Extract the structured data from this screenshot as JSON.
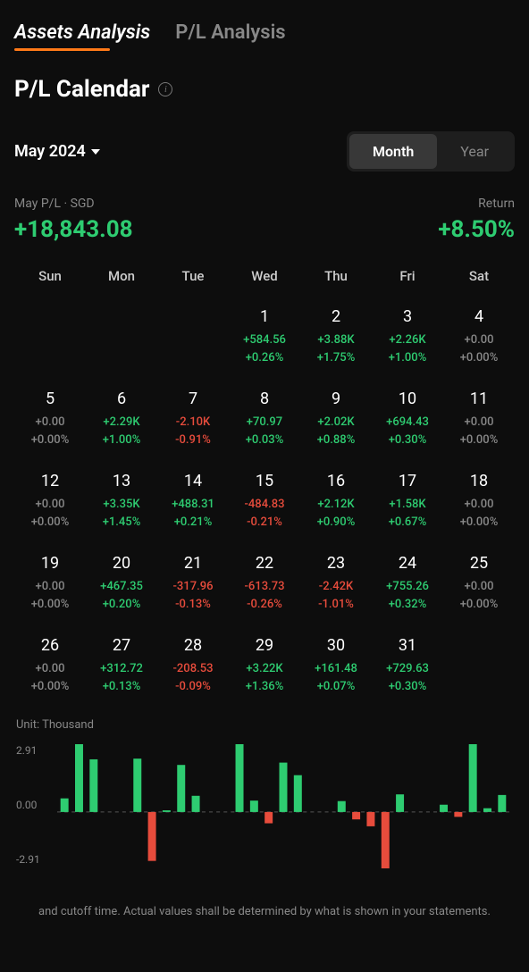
{
  "colors": {
    "positive": "#2ecc71",
    "negative": "#e74c3c",
    "neutral": "#888888",
    "background": "#0d0d0d",
    "grid": "#555555"
  },
  "tabs": [
    {
      "label": "Assets Analysis",
      "active": true
    },
    {
      "label": "P/L Analysis",
      "active": false
    }
  ],
  "page_title": "P/L Calendar",
  "period": {
    "label": "May 2024",
    "toggles": [
      {
        "label": "Month",
        "active": true
      },
      {
        "label": "Year",
        "active": false
      }
    ]
  },
  "summary": {
    "left_label": "May P/L · SGD",
    "left_value": "+18,843.08",
    "left_class": "pos",
    "right_label": "Return",
    "right_value": "+8.50%",
    "right_class": "pos"
  },
  "weekdays": [
    "Sun",
    "Mon",
    "Tue",
    "Wed",
    "Thu",
    "Fri",
    "Sat"
  ],
  "calendar_weeks": [
    [
      null,
      null,
      null,
      {
        "day": "1",
        "val": "+584.56",
        "pct": "+0.26%",
        "cls": "pos",
        "bar": 584.56
      },
      {
        "day": "2",
        "val": "+3.88K",
        "pct": "+1.75%",
        "cls": "pos",
        "bar": 3880
      },
      {
        "day": "3",
        "val": "+2.26K",
        "pct": "+1.00%",
        "cls": "pos",
        "bar": 2260
      },
      {
        "day": "4",
        "val": "+0.00",
        "pct": "+0.00%",
        "cls": "neu",
        "bar": 0
      }
    ],
    [
      {
        "day": "5",
        "val": "+0.00",
        "pct": "+0.00%",
        "cls": "neu",
        "bar": 0
      },
      {
        "day": "6",
        "val": "+2.29K",
        "pct": "+1.00%",
        "cls": "pos",
        "bar": 2290
      },
      {
        "day": "7",
        "val": "-2.10K",
        "pct": "-0.91%",
        "cls": "neg",
        "bar": -2100
      },
      {
        "day": "8",
        "val": "+70.97",
        "pct": "+0.03%",
        "cls": "pos",
        "bar": 70.97
      },
      {
        "day": "9",
        "val": "+2.02K",
        "pct": "+0.88%",
        "cls": "pos",
        "bar": 2020
      },
      {
        "day": "10",
        "val": "+694.43",
        "pct": "+0.30%",
        "cls": "pos",
        "bar": 694.43
      },
      {
        "day": "11",
        "val": "+0.00",
        "pct": "+0.00%",
        "cls": "neu",
        "bar": 0
      }
    ],
    [
      {
        "day": "12",
        "val": "+0.00",
        "pct": "+0.00%",
        "cls": "neu",
        "bar": 0
      },
      {
        "day": "13",
        "val": "+3.35K",
        "pct": "+1.45%",
        "cls": "pos",
        "bar": 3350
      },
      {
        "day": "14",
        "val": "+488.31",
        "pct": "+0.21%",
        "cls": "pos",
        "bar": 488.31
      },
      {
        "day": "15",
        "val": "-484.83",
        "pct": "-0.21%",
        "cls": "neg",
        "bar": -484.83
      },
      {
        "day": "16",
        "val": "+2.12K",
        "pct": "+0.90%",
        "cls": "pos",
        "bar": 2120
      },
      {
        "day": "17",
        "val": "+1.58K",
        "pct": "+0.67%",
        "cls": "pos",
        "bar": 1580
      },
      {
        "day": "18",
        "val": "+0.00",
        "pct": "+0.00%",
        "cls": "neu",
        "bar": 0
      }
    ],
    [
      {
        "day": "19",
        "val": "+0.00",
        "pct": "+0.00%",
        "cls": "neu",
        "bar": 0
      },
      {
        "day": "20",
        "val": "+467.35",
        "pct": "+0.20%",
        "cls": "pos",
        "bar": 467.35
      },
      {
        "day": "21",
        "val": "-317.96",
        "pct": "-0.13%",
        "cls": "neg",
        "bar": -317.96
      },
      {
        "day": "22",
        "val": "-613.73",
        "pct": "-0.26%",
        "cls": "neg",
        "bar": -613.73
      },
      {
        "day": "23",
        "val": "-2.42K",
        "pct": "-1.01%",
        "cls": "neg",
        "bar": -2420
      },
      {
        "day": "24",
        "val": "+755.26",
        "pct": "+0.32%",
        "cls": "pos",
        "bar": 755.26
      },
      {
        "day": "25",
        "val": "+0.00",
        "pct": "+0.00%",
        "cls": "neu",
        "bar": 0
      }
    ],
    [
      {
        "day": "26",
        "val": "+0.00",
        "pct": "+0.00%",
        "cls": "neu",
        "bar": 0
      },
      {
        "day": "27",
        "val": "+312.72",
        "pct": "+0.13%",
        "cls": "pos",
        "bar": 312.72
      },
      {
        "day": "28",
        "val": "-208.53",
        "pct": "-0.09%",
        "cls": "neg",
        "bar": -208.53
      },
      {
        "day": "29",
        "val": "+3.22K",
        "pct": "+1.36%",
        "cls": "pos",
        "bar": 3220
      },
      {
        "day": "30",
        "val": "+161.48",
        "pct": "+0.07%",
        "cls": "pos",
        "bar": 161.48
      },
      {
        "day": "31",
        "val": "+729.63",
        "pct": "+0.30%",
        "cls": "pos",
        "bar": 729.63
      },
      null
    ]
  ],
  "chart": {
    "type": "bar",
    "unit_label": "Unit: Thousand",
    "ylim": [
      -2910,
      2910
    ],
    "ytick_labels": [
      "2.91",
      "0.00",
      "-2.91"
    ],
    "bar_width_ratio": 0.55,
    "background_color": "#0d0d0d",
    "grid_color": "#555555",
    "pos_color": "#2ecc71",
    "neg_color": "#e74c3c"
  },
  "disclaimer": "and cutoff time. Actual values shall be determined by what is shown in your statements."
}
